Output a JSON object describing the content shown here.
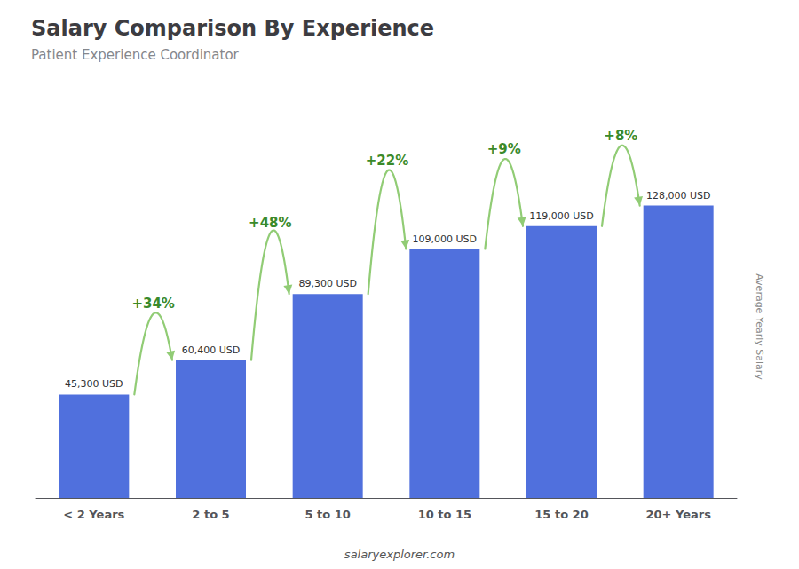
{
  "chart_data": {
    "type": "bar",
    "title": "Salary Comparison By Experience",
    "subtitle": "Patient Experience Coordinator",
    "categories": [
      "< 2 Years",
      "2 to 5",
      "5 to 10",
      "10 to 15",
      "15 to 20",
      "20+ Years"
    ],
    "values": [
      45300,
      60400,
      89300,
      109000,
      119000,
      128000
    ],
    "value_labels": [
      "45,300 USD",
      "60,400 USD",
      "89,300 USD",
      "109,000 USD",
      "119,000 USD",
      "128,000 USD"
    ],
    "data_labels": true,
    "annotations": [
      "+34%",
      "+48%",
      "+22%",
      "+9%",
      "+8%"
    ],
    "ylabel": "Average Yearly Salary",
    "footer": "salaryexplorer.com",
    "ylim": [
      0,
      150000
    ],
    "tick_labels": "x",
    "grid": false
  }
}
